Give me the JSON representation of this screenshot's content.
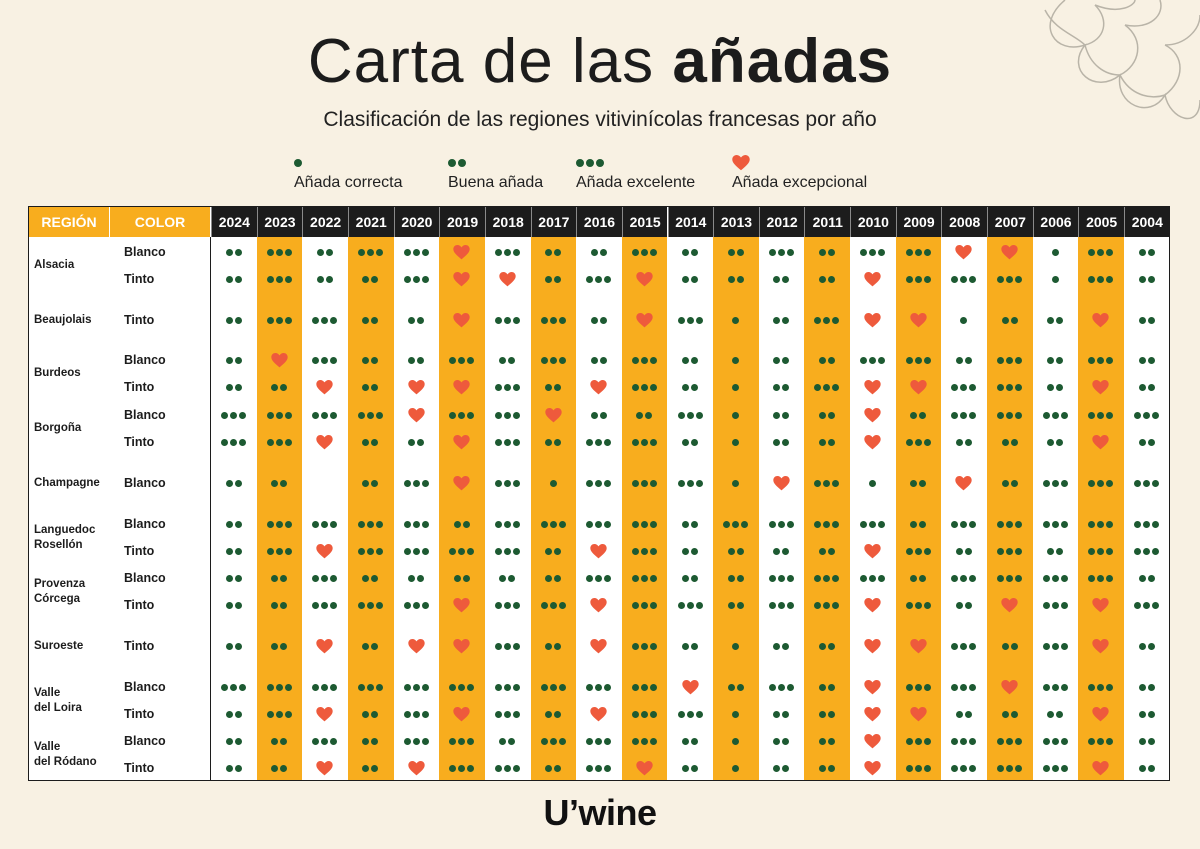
{
  "title": {
    "light": "Carta de las ",
    "bold": "añadas"
  },
  "subtitle": "Clasificación de las regiones vitivinícolas francesas por año",
  "legend": [
    {
      "symbol": "dot-1",
      "label": "Añada correcta"
    },
    {
      "symbol": "dot-2",
      "label": "Buena añada"
    },
    {
      "symbol": "dot-3",
      "label": "Añada excelente"
    },
    {
      "symbol": "heart-icon",
      "label": "Añada excepcional"
    }
  ],
  "table": {
    "header_region": "REGIÓN",
    "header_color": "COLOR",
    "years": [
      "2024",
      "2023",
      "2022",
      "2021",
      "2020",
      "2019",
      "2018",
      "2017",
      "2016",
      "2015",
      "2014",
      "2013",
      "2012",
      "2011",
      "2010",
      "2009",
      "2008",
      "2007",
      "2006",
      "2005",
      "2004"
    ],
    "highlighted_years": [
      "2023",
      "2021",
      "2019",
      "2017",
      "2015",
      "2013",
      "2011",
      "2009",
      "2007",
      "2005"
    ],
    "regions": [
      {
        "name": "Alsacia",
        "rows": [
          {
            "color": "Blanco",
            "ratings": "2,3,2,3,3,H,3,2,2,3,2,2,3,2,3,3,H,H,1,3,2"
          },
          {
            "color": "Tinto",
            "ratings": "2,3,2,2,3,H,H,2,3,H,2,2,2,2,H,3,3,3,1,3,2"
          }
        ]
      },
      {
        "name": "Beaujolais",
        "rows": [
          {
            "color": "Tinto",
            "ratings": "2,3,3,2,2,H,3,3,2,H,3,1,2,3,H,H,1,2,2,H,2"
          }
        ]
      },
      {
        "name": "Burdeos",
        "rows": [
          {
            "color": "Blanco",
            "ratings": "2,H,3,2,2,3,2,3,2,3,2,1,2,2,3,3,2,3,2,3,2"
          },
          {
            "color": "Tinto",
            "ratings": "2,2,H,2,H,H,3,2,H,3,2,1,2,3,H,H,3,3,2,H,2"
          }
        ]
      },
      {
        "name": "Borgoña",
        "rows": [
          {
            "color": "Blanco",
            "ratings": "3,3,3,3,H,3,3,H,2,2,3,1,2,2,H,2,3,3,3,3,3"
          },
          {
            "color": "Tinto",
            "ratings": "3,3,H,2,2,H,3,2,3,3,2,1,2,2,H,3,2,2,2,H,2"
          }
        ]
      },
      {
        "name": "Champagne",
        "rows": [
          {
            "color": "Blanco",
            "ratings": "2,2,0,2,3,H,3,1,3,3,3,1,H,3,1,2,H,2,3,3,3"
          }
        ]
      },
      {
        "name": "Languedoc\nRosellón",
        "rows": [
          {
            "color": "Blanco",
            "ratings": "2,3,3,3,3,2,3,3,3,3,2,3,3,3,3,2,3,3,3,3,3"
          },
          {
            "color": "Tinto",
            "ratings": "2,3,H,3,3,3,3,2,H,3,2,2,2,2,H,3,2,3,2,3,3"
          }
        ]
      },
      {
        "name": "Provenza\nCórcega",
        "rows": [
          {
            "color": "Blanco",
            "ratings": "2,2,3,2,2,2,2,2,3,3,2,2,3,3,3,2,3,3,3,3,2"
          },
          {
            "color": "Tinto",
            "ratings": "2,2,3,3,3,H,3,3,H,3,3,2,3,3,H,3,2,H,3,H,3"
          }
        ]
      },
      {
        "name": "Suroeste",
        "rows": [
          {
            "color": "Tinto",
            "ratings": "2,2,H,2,H,H,3,2,H,3,2,1,2,2,H,H,3,2,3,H,2"
          }
        ]
      },
      {
        "name": "Valle\ndel Loira",
        "rows": [
          {
            "color": "Blanco",
            "ratings": "3,3,3,3,3,3,3,3,3,3,H,2,3,2,H,3,3,H,3,3,2"
          },
          {
            "color": "Tinto",
            "ratings": "2,3,H,2,3,H,3,2,H,3,3,1,2,2,H,H,2,2,2,H,2"
          }
        ]
      },
      {
        "name": "Valle\ndel Ródano",
        "rows": [
          {
            "color": "Blanco",
            "ratings": "2,2,3,2,3,3,2,3,3,3,2,1,2,2,H,3,3,3,3,3,2"
          },
          {
            "color": "Tinto",
            "ratings": "2,2,H,2,H,3,3,2,3,H,2,1,2,2,H,3,3,3,3,H,2"
          }
        ]
      }
    ]
  },
  "colors": {
    "orange": "#f8ad1e",
    "green": "#1d5a32",
    "heart": "#ee5a3c",
    "header_bg": "#1c1c1c",
    "page_bg": "#f8f1e3"
  },
  "logo": "U’wine"
}
